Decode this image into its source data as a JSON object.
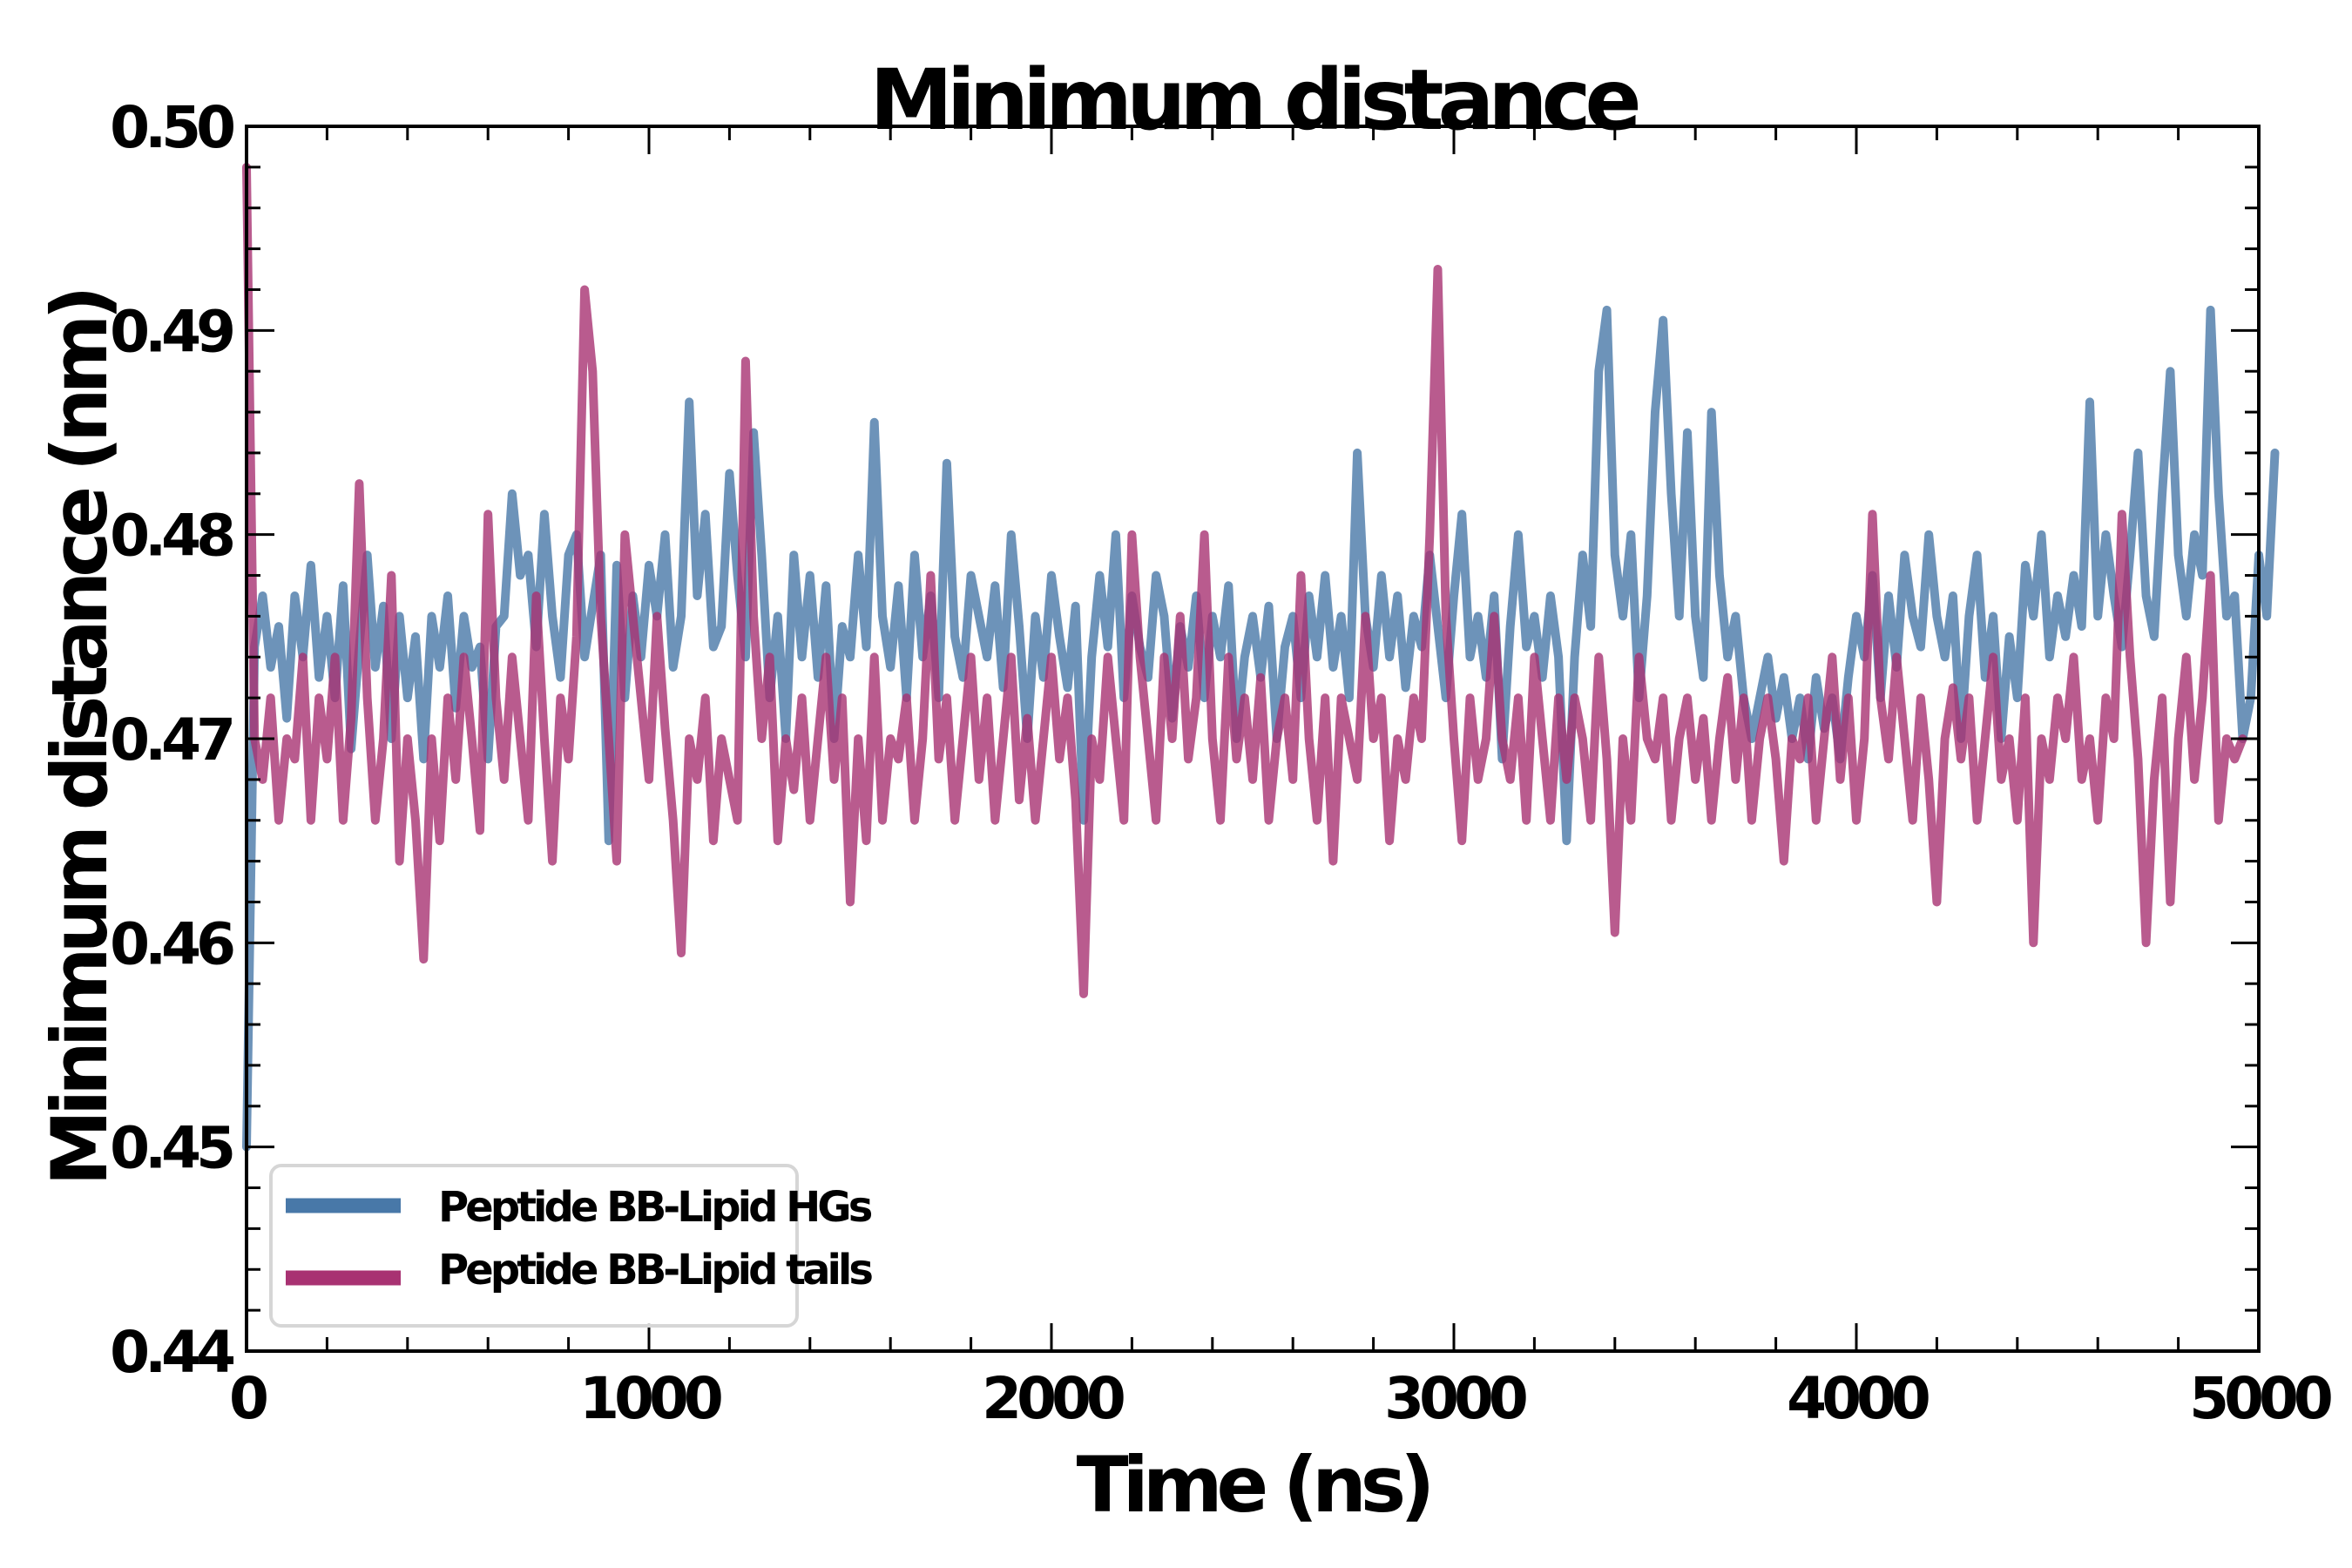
{
  "chart_data": {
    "type": "line",
    "title": "Minimum distance",
    "xlabel": "Time (ns)",
    "ylabel": "Minimum distance (nm)",
    "xlim": [
      0,
      5000
    ],
    "ylim": [
      0.44,
      0.5
    ],
    "x_ticks": [
      0,
      1000,
      2000,
      3000,
      4000,
      5000
    ],
    "x_tick_labels": [
      "0",
      "1000",
      "2000",
      "3000",
      "4000",
      "5000"
    ],
    "y_ticks": [
      0.44,
      0.45,
      0.46,
      0.47,
      0.48,
      0.49,
      0.5
    ],
    "y_tick_labels": [
      "0.44",
      "0.45",
      "0.46",
      "0.47",
      "0.48",
      "0.49",
      "0.50"
    ],
    "x_minor_step": 200,
    "y_minor_step": 0.002,
    "grid": false,
    "legend_position": "lower-left",
    "x_start": 0,
    "x_step": 20,
    "series": [
      {
        "name": "Peptide BB-Lipid HGs",
        "color": "#4878a8",
        "alpha": 0.8,
        "values": [
          0.45,
          0.4745,
          0.477,
          0.4735,
          0.4755,
          0.471,
          0.477,
          0.474,
          0.4785,
          0.473,
          0.476,
          0.472,
          0.4775,
          0.4695,
          0.4745,
          0.479,
          0.4735,
          0.4765,
          0.47,
          0.476,
          0.472,
          0.475,
          0.469,
          0.476,
          0.4735,
          0.477,
          0.4715,
          0.476,
          0.4735,
          0.4745,
          0.469,
          0.4755,
          0.476,
          0.482,
          0.478,
          0.479,
          0.4745,
          0.481,
          0.476,
          0.473,
          0.479,
          0.48,
          0.474,
          0.4765,
          0.479,
          0.465,
          0.4785,
          0.472,
          0.477,
          0.474,
          0.4785,
          0.476,
          0.48,
          0.4735,
          0.476,
          0.4865,
          0.477,
          0.481,
          0.4745,
          0.4755,
          0.483,
          0.478,
          0.474,
          0.485,
          0.479,
          0.472,
          0.476,
          0.47,
          0.479,
          0.474,
          0.478,
          0.473,
          0.4775,
          0.47,
          0.4755,
          0.474,
          0.479,
          0.4745,
          0.4855,
          0.476,
          0.4735,
          0.4775,
          0.472,
          0.479,
          0.474,
          0.477,
          0.472,
          0.4835,
          0.475,
          0.473,
          0.478,
          0.476,
          0.474,
          0.4775,
          0.4725,
          0.48,
          0.4755,
          0.47,
          0.476,
          0.473,
          0.478,
          0.475,
          0.4725,
          0.4765,
          0.466,
          0.474,
          0.478,
          0.4745,
          0.48,
          0.472,
          0.477,
          0.4745,
          0.473,
          0.478,
          0.476,
          0.471,
          0.4755,
          0.4735,
          0.477,
          0.472,
          0.476,
          0.474,
          0.4775,
          0.47,
          0.474,
          0.476,
          0.473,
          0.4765,
          0.47,
          0.4745,
          0.476,
          0.472,
          0.477,
          0.474,
          0.478,
          0.4735,
          0.476,
          0.472,
          0.484,
          0.476,
          0.4735,
          0.478,
          0.474,
          0.477,
          0.4725,
          0.476,
          0.4745,
          0.479,
          0.4755,
          0.472,
          0.477,
          0.481,
          0.474,
          0.476,
          0.473,
          0.477,
          0.469,
          0.4755,
          0.48,
          0.4745,
          0.476,
          0.473,
          0.477,
          0.474,
          0.465,
          0.474,
          0.479,
          0.4755,
          0.488,
          0.491,
          0.479,
          0.476,
          0.48,
          0.472,
          0.477,
          0.486,
          0.4905,
          0.482,
          0.476,
          0.485,
          0.476,
          0.473,
          0.486,
          0.478,
          0.474,
          0.476,
          0.472,
          0.47,
          0.472,
          0.474,
          0.471,
          0.473,
          0.47,
          0.472,
          0.469,
          0.473,
          0.4705,
          0.472,
          0.469,
          0.473,
          0.476,
          0.474,
          0.478,
          0.472,
          0.477,
          0.4735,
          0.479,
          0.476,
          0.4745,
          0.48,
          0.476,
          0.474,
          0.477,
          0.47,
          0.476,
          0.479,
          0.473,
          0.476,
          0.47,
          0.475,
          0.472,
          0.4785,
          0.476,
          0.48,
          0.474,
          0.477,
          0.475,
          0.478,
          0.4755,
          0.4865,
          0.476,
          0.48,
          0.477,
          0.4745,
          0.479,
          0.484,
          0.477,
          0.475,
          0.482,
          0.488,
          0.479,
          0.476,
          0.48,
          0.478,
          0.491,
          0.482,
          0.476,
          0.477,
          0.47,
          0.472,
          0.479,
          0.476,
          0.484
        ]
      },
      {
        "name": "Peptide BB-Lipid tails",
        "color": "#a83272",
        "alpha": 0.8,
        "values": [
          0.498,
          0.47,
          0.468,
          0.472,
          0.466,
          0.47,
          0.469,
          0.474,
          0.466,
          0.472,
          0.469,
          0.474,
          0.466,
          0.471,
          0.4825,
          0.472,
          0.466,
          0.47,
          0.478,
          0.464,
          0.47,
          0.466,
          0.4592,
          0.47,
          0.465,
          0.472,
          0.468,
          0.474,
          0.47,
          0.4655,
          0.481,
          0.472,
          0.468,
          0.474,
          0.47,
          0.466,
          0.477,
          0.47,
          0.464,
          0.472,
          0.469,
          0.475,
          0.492,
          0.488,
          0.476,
          0.47,
          0.464,
          0.48,
          0.476,
          0.472,
          0.468,
          0.476,
          0.4705,
          0.466,
          0.4595,
          0.47,
          0.468,
          0.472,
          0.465,
          0.47,
          0.468,
          0.466,
          0.4885,
          0.476,
          0.47,
          0.474,
          0.465,
          0.47,
          0.4675,
          0.472,
          0.466,
          0.47,
          0.474,
          0.468,
          0.472,
          0.462,
          0.47,
          0.465,
          0.474,
          0.466,
          0.47,
          0.469,
          0.472,
          0.466,
          0.47,
          0.478,
          0.469,
          0.472,
          0.466,
          0.47,
          0.474,
          0.468,
          0.472,
          0.466,
          0.47,
          0.474,
          0.467,
          0.471,
          0.466,
          0.47,
          0.474,
          0.469,
          0.472,
          0.467,
          0.4575,
          0.47,
          0.468,
          0.474,
          0.47,
          0.466,
          0.48,
          0.474,
          0.47,
          0.466,
          0.474,
          0.47,
          0.476,
          0.469,
          0.472,
          0.48,
          0.47,
          0.466,
          0.474,
          0.469,
          0.472,
          0.468,
          0.473,
          0.466,
          0.47,
          0.472,
          0.468,
          0.478,
          0.47,
          0.466,
          0.472,
          0.464,
          0.472,
          0.47,
          0.468,
          0.476,
          0.47,
          0.472,
          0.465,
          0.47,
          0.468,
          0.472,
          0.47,
          0.48,
          0.493,
          0.476,
          0.47,
          0.465,
          0.472,
          0.468,
          0.47,
          0.476,
          0.47,
          0.468,
          0.472,
          0.466,
          0.474,
          0.47,
          0.466,
          0.472,
          0.468,
          0.472,
          0.47,
          0.466,
          0.474,
          0.469,
          0.4605,
          0.47,
          0.466,
          0.474,
          0.47,
          0.469,
          0.472,
          0.466,
          0.47,
          0.472,
          0.468,
          0.471,
          0.466,
          0.47,
          0.473,
          0.468,
          0.472,
          0.466,
          0.47,
          0.472,
          0.469,
          0.464,
          0.47,
          0.469,
          0.472,
          0.466,
          0.47,
          0.474,
          0.468,
          0.472,
          0.466,
          0.47,
          0.481,
          0.472,
          0.469,
          0.474,
          0.47,
          0.466,
          0.472,
          0.468,
          0.462,
          0.47,
          0.4725,
          0.469,
          0.472,
          0.466,
          0.47,
          0.474,
          0.468,
          0.47,
          0.466,
          0.472,
          0.46,
          0.47,
          0.468,
          0.472,
          0.47,
          0.474,
          0.468,
          0.47,
          0.466,
          0.472,
          0.47,
          0.481,
          0.474,
          0.469,
          0.46,
          0.468,
          0.472,
          0.462,
          0.47,
          0.474,
          0.468,
          0.472,
          0.478,
          0.466,
          0.47,
          0.469,
          0.47
        ]
      }
    ]
  }
}
